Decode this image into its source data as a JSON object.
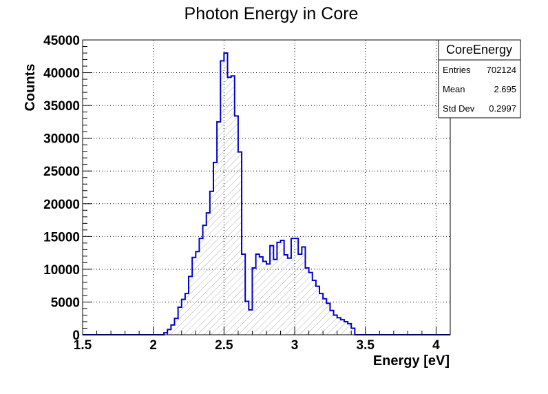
{
  "chart_data": {
    "type": "bar",
    "title": "Photon Energy in Core",
    "xlabel": "Energy [eV]",
    "ylabel": "Counts",
    "xlim": [
      1.5,
      4.1
    ],
    "ylim": [
      0,
      45000
    ],
    "x_ticks": [
      1.5,
      2,
      2.5,
      3,
      3.5,
      4
    ],
    "x_tick_labels": [
      "1.5",
      "2",
      "2.5",
      "3",
      "3.5",
      "4"
    ],
    "y_ticks": [
      0,
      5000,
      10000,
      15000,
      20000,
      25000,
      30000,
      35000,
      40000,
      45000
    ],
    "y_tick_labels": [
      "0",
      "5000",
      "10000",
      "15000",
      "20000",
      "25000",
      "30000",
      "35000",
      "40000",
      "45000"
    ],
    "grid": true,
    "bin_width": 0.025,
    "bin_starts": [
      2.075,
      2.1,
      2.125,
      2.15,
      2.175,
      2.2,
      2.225,
      2.25,
      2.275,
      2.3,
      2.325,
      2.35,
      2.375,
      2.4,
      2.425,
      2.45,
      2.475,
      2.5,
      2.525,
      2.55,
      2.575,
      2.6,
      2.625,
      2.65,
      2.675,
      2.7,
      2.725,
      2.75,
      2.775,
      2.8,
      2.825,
      2.85,
      2.875,
      2.9,
      2.925,
      2.95,
      2.975,
      3.0,
      3.025,
      3.05,
      3.075,
      3.1,
      3.125,
      3.15,
      3.175,
      3.2,
      3.225,
      3.25,
      3.275,
      3.3,
      3.325,
      3.35,
      3.375,
      3.4,
      3.425,
      3.45,
      3.475,
      3.5
    ],
    "series": [
      {
        "values": [
          300,
          800,
          1500,
          2500,
          4200,
          5400,
          6300,
          8900,
          11800,
          12700,
          14700,
          16700,
          18600,
          21900,
          26300,
          32500,
          41800,
          43000,
          39300,
          39500,
          33400,
          27900,
          12300,
          5100,
          3800,
          10200,
          12300,
          11900,
          11200,
          10800,
          13600,
          11500,
          14100,
          14400,
          12200,
          11700,
          14700,
          14700,
          12300,
          13400,
          10200,
          9500,
          8300,
          7400,
          6300,
          5500,
          4800,
          3700,
          3000,
          2600,
          2300,
          2000,
          1700,
          1000,
          0,
          0,
          0,
          0
        ],
        "color": "#0000cc",
        "fill_pattern": "hatched"
      }
    ],
    "legend": "none"
  },
  "stats_box": {
    "name": "CoreEnergy",
    "rows": [
      {
        "label": "Entries",
        "value": "702124"
      },
      {
        "label": "Mean",
        "value": "2.695"
      },
      {
        "label": "Std Dev",
        "value": "0.2997"
      }
    ]
  }
}
